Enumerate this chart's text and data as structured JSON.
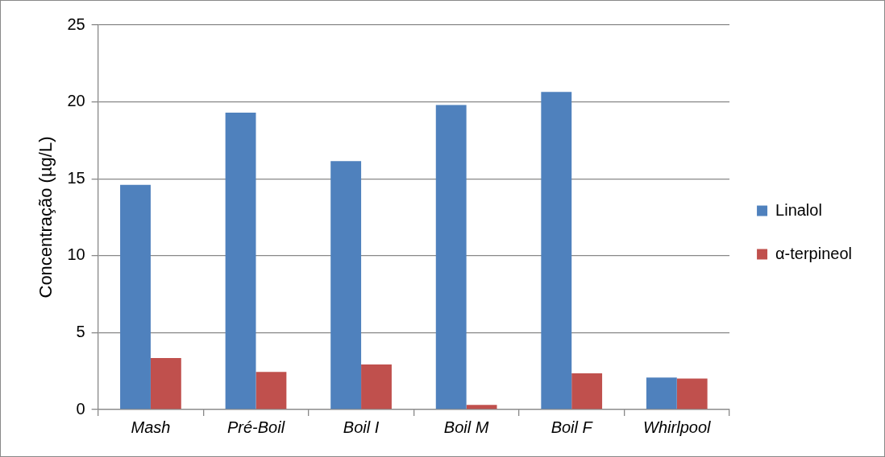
{
  "chart_data": {
    "type": "bar",
    "ylabel": "Concentração (µg/L)",
    "categories": [
      "Mash",
      "Pré-Boil",
      "Boil I",
      "Boil M",
      "Boil F",
      "Whirlpool"
    ],
    "series": [
      {
        "name": "Linalol",
        "color": "#4f81bd",
        "values": [
          14.6,
          19.3,
          16.15,
          19.8,
          20.65,
          2.08
        ]
      },
      {
        "name": "α-terpineol",
        "color": "#c0504d",
        "values": [
          3.35,
          2.45,
          2.93,
          0.3,
          2.35,
          2.02
        ]
      }
    ],
    "ylim": [
      0,
      25
    ],
    "yticks": [
      0,
      5,
      10,
      15,
      20,
      25
    ],
    "grid": "y",
    "legend": "right"
  }
}
